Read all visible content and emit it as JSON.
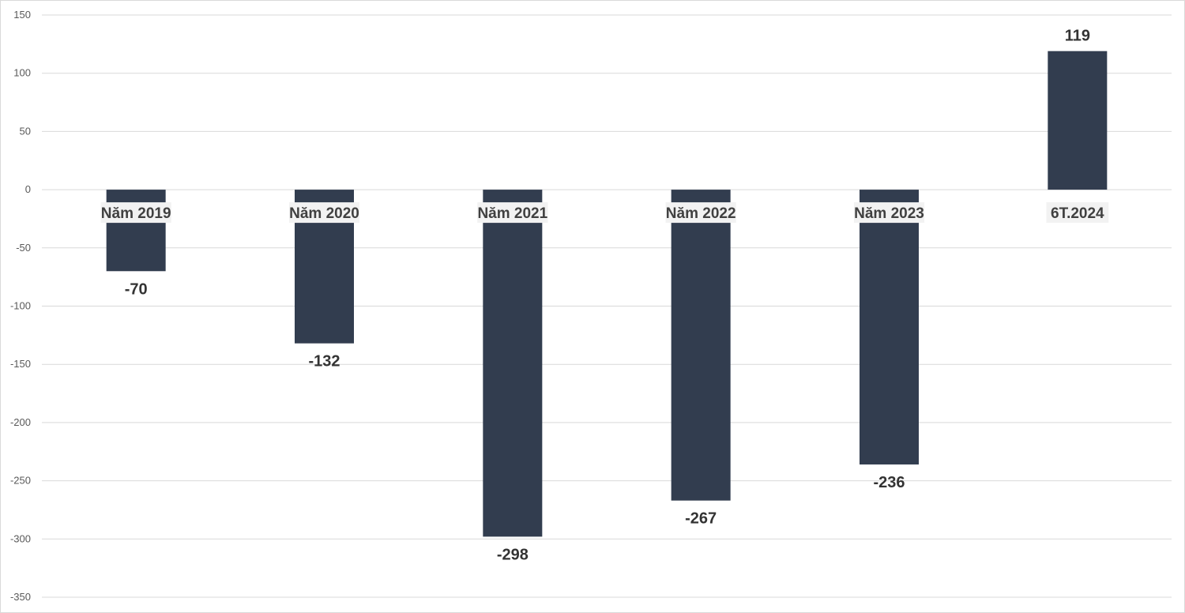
{
  "chart_data": {
    "type": "bar",
    "categories": [
      "Năm 2019",
      "Năm 2020",
      "Năm 2021",
      "Năm 2022",
      "Năm 2023",
      "6T.2024"
    ],
    "values": [
      -70,
      -132,
      -298,
      -267,
      -236,
      119
    ],
    "data_labels": [
      "-70",
      "-132",
      "-298",
      "-267",
      "-236",
      "119"
    ],
    "ylim": [
      -350,
      150
    ],
    "yticks": [
      150,
      100,
      50,
      0,
      -50,
      -100,
      -150,
      -200,
      -250,
      -300,
      -350
    ],
    "ytick_labels": [
      "150",
      "100",
      "50",
      "0",
      "-50",
      "-100",
      "-150",
      "-200",
      "-250",
      "-300",
      "-350"
    ],
    "title": "",
    "xlabel": "",
    "ylabel": "",
    "grid": true,
    "legend": "none",
    "bar_color": "#323d4f",
    "gridline_color": "#d9d9d9",
    "category_label_background": "#f2f2f2"
  }
}
